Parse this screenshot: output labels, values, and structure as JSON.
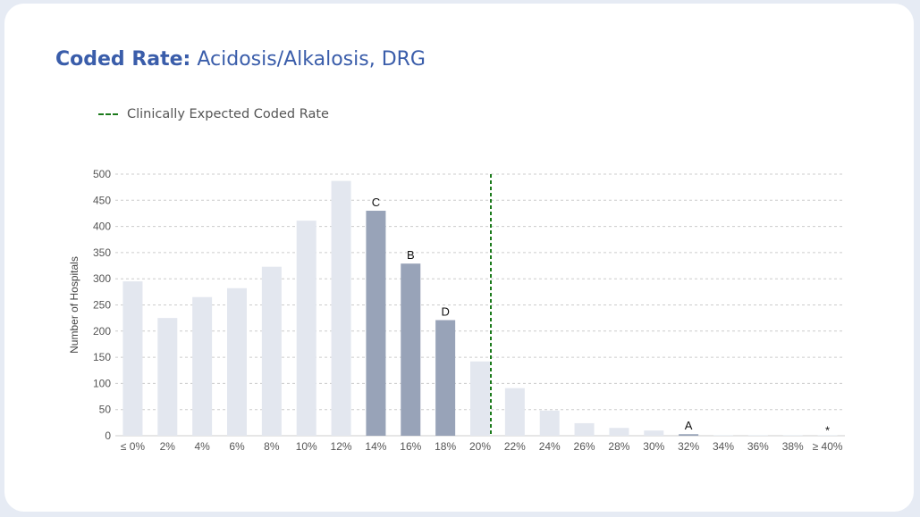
{
  "header": {
    "title_bold": "Coded Rate:",
    "title_rest": "Acidosis/Alkalosis, DRG"
  },
  "legend": {
    "label": "Clinically Expected Coded Rate",
    "line_color": "#1b7a1b"
  },
  "chart_data": {
    "type": "bar",
    "categories": [
      "≤ 0%",
      "2%",
      "4%",
      "6%",
      "8%",
      "10%",
      "12%",
      "14%",
      "16%",
      "18%",
      "20%",
      "22%",
      "24%",
      "26%",
      "28%",
      "30%",
      "32%",
      "34%",
      "36%",
      "38%",
      "≥ 40%"
    ],
    "values": [
      295,
      225,
      265,
      282,
      323,
      411,
      487,
      430,
      329,
      221,
      142,
      91,
      48,
      24,
      15,
      10,
      3,
      1,
      1,
      1,
      1
    ],
    "highlighted": [
      false,
      false,
      false,
      false,
      false,
      false,
      false,
      true,
      true,
      true,
      false,
      false,
      false,
      false,
      false,
      false,
      true,
      false,
      false,
      false,
      false
    ],
    "bar_labels": [
      "",
      "",
      "",
      "",
      "",
      "",
      "",
      "C",
      "B",
      "D",
      "",
      "",
      "",
      "",
      "",
      "",
      "A",
      "",
      "",
      "",
      "*"
    ],
    "ylabel": "Number of Hospitals",
    "ylim": [
      0,
      500
    ],
    "yticks": [
      0,
      50,
      100,
      150,
      200,
      250,
      300,
      350,
      400,
      450,
      500
    ],
    "reference_line_x": "20%",
    "grid": true,
    "colors": {
      "bar": "#e3e7ef",
      "highlight": "#98a3b8",
      "grid": "#cccccc",
      "asterisk": "#2d8ca8"
    }
  }
}
